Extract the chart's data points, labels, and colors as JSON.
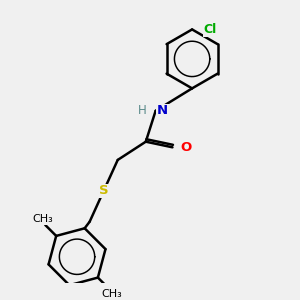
{
  "background_color": "#f0f0f0",
  "bond_color": "#000000",
  "atom_colors": {
    "N": "#0000cc",
    "O": "#ff0000",
    "S": "#ccbb00",
    "Cl": "#00aa00",
    "H": "#5a8a8a",
    "C": "#000000"
  },
  "bond_width": 1.8,
  "figsize": [
    3.0,
    3.0
  ],
  "dpi": 100,
  "xlim": [
    0,
    10
  ],
  "ylim": [
    0,
    10
  ]
}
